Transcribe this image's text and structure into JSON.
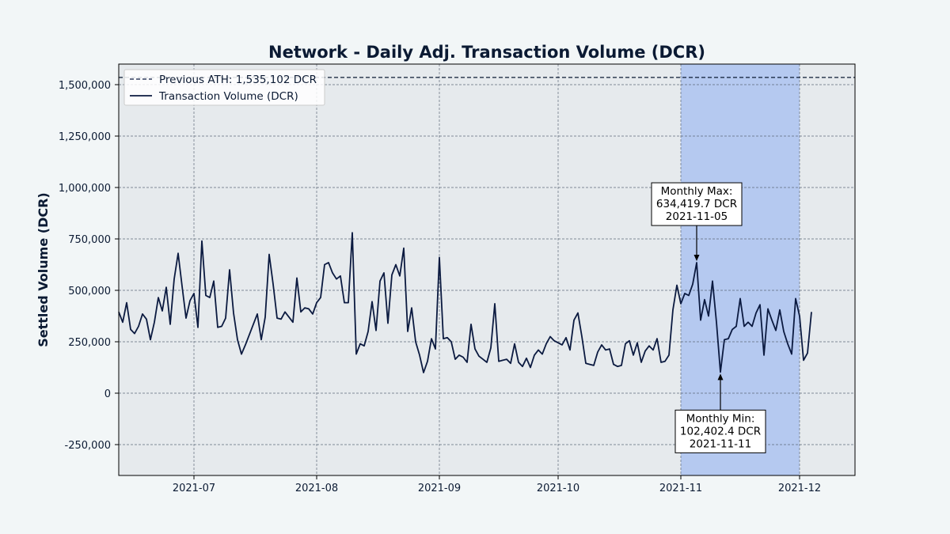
{
  "chart_data": {
    "type": "line",
    "title": "Network - Daily Adj. Transaction Volume (DCR)",
    "xlabel": "",
    "ylabel": "Settled Volume (DCR)",
    "x_start": "2021-06-12",
    "xlim": [
      "2021-06-12",
      "2021-12-15"
    ],
    "ylim": [
      -400000,
      1600000
    ],
    "yticks": [
      -250000,
      0,
      250000,
      500000,
      750000,
      1000000,
      1250000,
      1500000
    ],
    "ytick_labels": [
      "-250,000",
      "0",
      "250,000",
      "500,000",
      "750,000",
      "1,000,000",
      "1,250,000",
      "1,500,000"
    ],
    "xticks": [
      "2021-07-01",
      "2021-08-01",
      "2021-09-01",
      "2021-10-01",
      "2021-11-01",
      "2021-12-01"
    ],
    "xtick_labels": [
      "2021-07",
      "2021-08",
      "2021-09",
      "2021-10",
      "2021-11",
      "2021-12"
    ],
    "grid": true,
    "legend_position": "top-left",
    "highlight_span": [
      "2021-11-01",
      "2021-12-01"
    ],
    "reference_line": {
      "name": "Previous ATH: 1,535,102 DCR",
      "value": 1535102
    },
    "series": [
      {
        "name": "Transaction Volume (DCR)",
        "values": [
          395000,
          345000,
          440000,
          310000,
          290000,
          325000,
          385000,
          360000,
          260000,
          345000,
          465000,
          400000,
          515000,
          335000,
          555000,
          680000,
          520000,
          365000,
          450000,
          485000,
          320000,
          740000,
          475000,
          465000,
          545000,
          320000,
          325000,
          365000,
          600000,
          390000,
          260000,
          190000,
          235000,
          285000,
          335000,
          385000,
          260000,
          370000,
          675000,
          530000,
          365000,
          360000,
          395000,
          370000,
          345000,
          560000,
          395000,
          415000,
          410000,
          385000,
          440000,
          465000,
          625000,
          635000,
          585000,
          555000,
          570000,
          440000,
          440000,
          780000,
          190000,
          240000,
          230000,
          300000,
          445000,
          305000,
          545000,
          585000,
          340000,
          575000,
          625000,
          570000,
          705000,
          300000,
          415000,
          250000,
          185000,
          100000,
          155000,
          265000,
          215000,
          660000,
          265000,
          270000,
          250000,
          165000,
          185000,
          175000,
          150000,
          335000,
          215000,
          180000,
          165000,
          150000,
          220000,
          435000,
          155000,
          160000,
          165000,
          145000,
          240000,
          150000,
          130000,
          170000,
          125000,
          185000,
          210000,
          190000,
          240000,
          275000,
          255000,
          245000,
          235000,
          270000,
          210000,
          355000,
          390000,
          275000,
          145000,
          140000,
          135000,
          200000,
          235000,
          210000,
          215000,
          140000,
          130000,
          135000,
          240000,
          255000,
          185000,
          245000,
          150000,
          205000,
          230000,
          210000,
          265000,
          150000,
          155000,
          185000,
          405000,
          525000,
          435000,
          485000,
          475000,
          530000,
          634419.7,
          355000,
          455000,
          375000,
          545000,
          345000,
          102402.4,
          260000,
          265000,
          310000,
          325000,
          460000,
          325000,
          345000,
          325000,
          390000,
          430000,
          185000,
          410000,
          355000,
          305000,
          405000,
          300000,
          240000,
          190000,
          460000,
          375000,
          160000,
          195000,
          395000
        ]
      }
    ],
    "annotations": [
      {
        "lines": [
          "Monthly Max:",
          "634,419.7 DCR",
          "2021-11-05"
        ],
        "x": "2021-11-05",
        "y": 634419.7
      },
      {
        "lines": [
          "Monthly Min:",
          "102,402.4 DCR",
          "2021-11-11"
        ],
        "x": "2021-11-11",
        "y": 102402.4
      }
    ],
    "colors": {
      "line": "#0b1a40",
      "plot_bg": "#e6eaed",
      "highlight": "#b5c9f0",
      "grid": "#5f6a7a",
      "text": "#0b1a33"
    }
  }
}
